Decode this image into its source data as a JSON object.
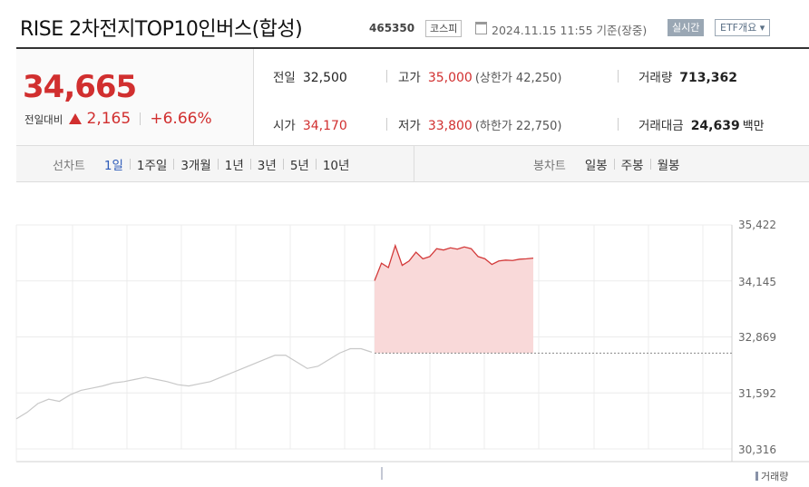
{
  "header": {
    "title": "RISE 2차전지TOP10인버스(합성)",
    "code": "465350",
    "market": "코스피",
    "datetime": "2024.11.15 11:55  기준(장중)",
    "live_label": "실시간",
    "etf_label": "ETF개요 ▾"
  },
  "price": {
    "current": "34,665",
    "change_label": "전일대비",
    "change_abs": "2,165",
    "change_pct": "+6.66%",
    "direction": "up"
  },
  "stats": {
    "prev_label": "전일",
    "prev_value": "32,500",
    "high_label": "고가",
    "high_value": "35,000",
    "upper_limit": "(상한가 42,250)",
    "volume_label": "거래량",
    "volume_value": "713,362",
    "open_label": "시가",
    "open_value": "34,170",
    "low_label": "저가",
    "low_value": "33,800",
    "lower_limit": "(하한가 22,750)",
    "amount_label": "거래대금",
    "amount_value": "24,639",
    "amount_unit": "백만"
  },
  "line_tabs": {
    "title": "선차트",
    "items": [
      "1일",
      "1주일",
      "3개월",
      "1년",
      "3년",
      "5년",
      "10년"
    ],
    "active_index": 0
  },
  "candle_tabs": {
    "title": "봉차트",
    "items": [
      "일봉",
      "주봉",
      "월봉"
    ]
  },
  "chart_data": {
    "type": "line",
    "y_ticks": [
      "35,422",
      "34,145",
      "32,869",
      "31,592",
      "30,316"
    ],
    "ylim": [
      30316,
      35422
    ],
    "reference_line": 32500,
    "volume_label": "거래량",
    "colors": {
      "today_line": "#d33a3a",
      "today_fill": "#f9d9d9",
      "prev_line": "#c8c8c8",
      "reference": "#888888"
    },
    "prev_day_series": [
      31000,
      31150,
      31350,
      31450,
      31400,
      31550,
      31650,
      31700,
      31750,
      31820,
      31850,
      31900,
      31950,
      31900,
      31850,
      31780,
      31750,
      31800,
      31850,
      31950,
      32050,
      32150,
      32250,
      32350,
      32450,
      32450,
      32300,
      32150,
      32200,
      32350,
      32500,
      32600,
      32600,
      32520
    ],
    "today_series": [
      34150,
      34550,
      34450,
      34950,
      34500,
      34600,
      34800,
      34650,
      34700,
      34880,
      34850,
      34900,
      34870,
      34920,
      34880,
      34700,
      34650,
      34520,
      34600,
      34620,
      34610,
      34640,
      34650,
      34665
    ]
  }
}
